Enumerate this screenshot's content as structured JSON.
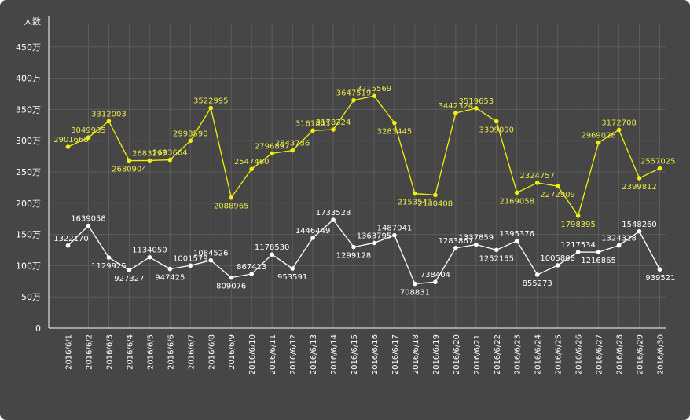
{
  "chart_data": {
    "type": "line",
    "ylabel": "人数",
    "y_ticks": [
      "0",
      "50万",
      "100万",
      "150万",
      "200万",
      "250万",
      "300万",
      "350万",
      "400万",
      "450万"
    ],
    "ylim": [
      0,
      5000000
    ],
    "y_tick_step": 500000,
    "grid": true,
    "categories": [
      "2016/6/1",
      "2016/6/2",
      "2016/6/3",
      "2016/6/4",
      "2016/6/5",
      "2016/6/6",
      "2016/6/7",
      "2016/6/8",
      "2016/6/9",
      "2016/6/10",
      "2016/6/11",
      "2016/6/12",
      "2016/6/13",
      "2016/6/14",
      "2016/6/15",
      "2016/6/16",
      "2016/6/17",
      "2016/6/18",
      "2016/6/19",
      "2016/6/20",
      "2016/6/21",
      "2016/6/22",
      "2016/6/23",
      "2016/6/24",
      "2016/6/25",
      "2016/6/26",
      "2016/6/27",
      "2016/6/28",
      "2016/6/29",
      "2016/6/30"
    ],
    "series": [
      {
        "color": "#f0f00a",
        "values": [
          2901668,
          3049905,
          3312003,
          2680904,
          2683197,
          2693664,
          2998590,
          3522995,
          2088965,
          2547460,
          2796897,
          2843736,
          3161803,
          3178324,
          3647519,
          3715569,
          3283445,
          2153542,
          2130408,
          3442324,
          3519653,
          3309090,
          2169058,
          2324757,
          2272909,
          1798395,
          2969028,
          3172708,
          2399812,
          2557025
        ]
      },
      {
        "color": "#ffffff",
        "values": [
          1322170,
          1639058,
          1129925,
          927327,
          1134050,
          947425,
          1001579,
          1084526,
          809076,
          867413,
          1178530,
          953591,
          1446449,
          1733528,
          1299128,
          1363795,
          1487041,
          708831,
          738404,
          1283867,
          1337859,
          1252155,
          1395376,
          855273,
          1005808,
          1217534,
          1216865,
          1324328,
          1548260,
          939521
        ]
      }
    ]
  }
}
